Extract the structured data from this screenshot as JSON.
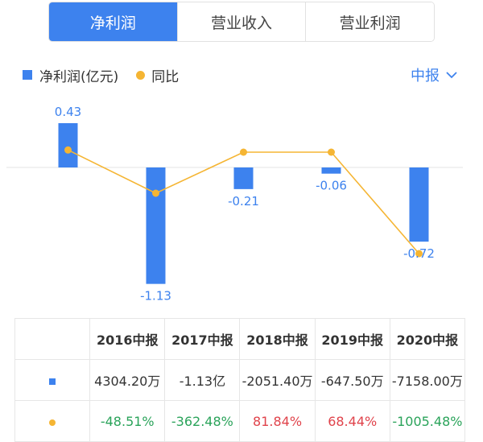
{
  "tabs": [
    {
      "label": "净利润",
      "active": true
    },
    {
      "label": "营业收入",
      "active": false
    },
    {
      "label": "营业利润",
      "active": false
    }
  ],
  "legend": {
    "bar_label": "净利润(亿元)",
    "line_label": "同比"
  },
  "period_selector": {
    "value": "中报"
  },
  "colors": {
    "bar": "#3d82ee",
    "line": "#f5b533",
    "positive": "#e0434b",
    "negative": "#2aa35a"
  },
  "chart_data": {
    "type": "bar",
    "categories": [
      "2016中报",
      "2017中报",
      "2018中报",
      "2019中报",
      "2020中报"
    ],
    "series": [
      {
        "name": "净利润(亿元)",
        "type": "bar",
        "values": [
          0.43,
          -1.13,
          -0.21,
          -0.06,
          -0.72
        ]
      },
      {
        "name": "同比",
        "type": "line",
        "values": [
          -48.51,
          -362.48,
          81.84,
          68.44,
          -1005.48
        ]
      }
    ],
    "data_labels": [
      "0.43",
      "-1.13",
      "-0.21",
      "-0.06",
      "-0.72"
    ]
  },
  "table": {
    "headers": [
      "2016中报",
      "2017中报",
      "2018中报",
      "2019中报",
      "2020中报"
    ],
    "net_profit": [
      "4304.20万",
      "-1.13亿",
      "-2051.40万",
      "-647.50万",
      "-7158.00万"
    ],
    "yoy": [
      "-48.51%",
      "-362.48%",
      "81.84%",
      "68.44%",
      "-1005.48%"
    ],
    "yoy_sign": [
      "neg",
      "neg",
      "pos",
      "pos",
      "neg"
    ]
  }
}
